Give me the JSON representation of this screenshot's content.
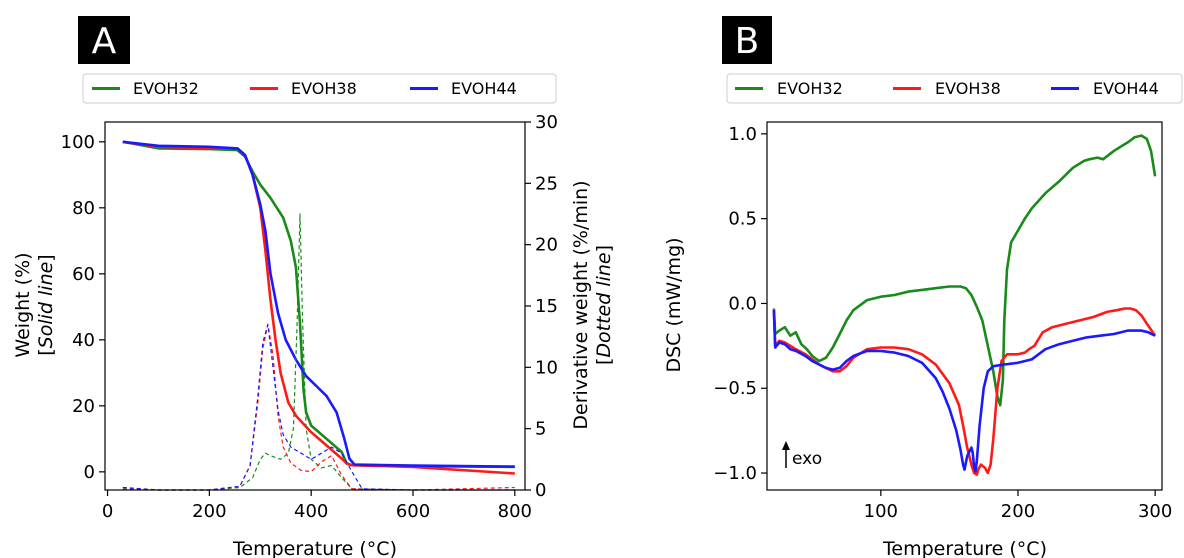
{
  "panels": [
    {
      "label": "A",
      "legend": [
        "EVOH32",
        "EVOH38",
        "EVOH44"
      ]
    },
    {
      "label": "B",
      "legend": [
        "EVOH32",
        "EVOH38",
        "EVOH44"
      ]
    }
  ],
  "colors": {
    "EVOH32": "#1a8a1a",
    "EVOH38": "#ff1a1a",
    "EVOH44": "#1a1aff"
  },
  "chart_data": [
    {
      "type": "line",
      "panel": "A",
      "xlabel": "Temperature (°C)",
      "ylabel": "Weight (%)",
      "ylabel_note": "Solid line",
      "y2label": "Derivative weight (%/min)",
      "y2label_note": "Dotted line",
      "xlim": [
        -5,
        820
      ],
      "ylim": [
        -5.5,
        106
      ],
      "y2lim": [
        0,
        30
      ],
      "xticks": [
        0,
        200,
        400,
        600,
        800
      ],
      "yticks": [
        0,
        20,
        40,
        60,
        80,
        100
      ],
      "y2ticks": [
        0,
        5,
        10,
        15,
        20,
        25,
        30
      ],
      "series": [
        {
          "name": "EVOH32",
          "axis": "left",
          "style": "solid",
          "x": [
            30,
            100,
            200,
            255,
            270,
            285,
            300,
            320,
            345,
            360,
            370,
            378,
            385,
            390,
            400,
            430,
            460,
            470,
            480,
            600,
            800
          ],
          "y": [
            100,
            98,
            97.8,
            97.5,
            95.5,
            91,
            87,
            83,
            77,
            70,
            62,
            45,
            25,
            18,
            14,
            10,
            6,
            2.5,
            2,
            1.7,
            1.5
          ]
        },
        {
          "name": "EVOH38",
          "axis": "left",
          "style": "solid",
          "x": [
            30,
            100,
            200,
            255,
            270,
            285,
            300,
            310,
            320,
            330,
            340,
            355,
            370,
            400,
            430,
            460,
            470,
            480,
            600,
            800
          ],
          "y": [
            100,
            98.5,
            98,
            98,
            96,
            90,
            80,
            67,
            52,
            40,
            30,
            21,
            17,
            12,
            8,
            4,
            2.5,
            2,
            1.5,
            -0.5
          ]
        },
        {
          "name": "EVOH44",
          "axis": "left",
          "style": "solid",
          "x": [
            30,
            100,
            200,
            255,
            270,
            285,
            300,
            310,
            320,
            335,
            350,
            370,
            390,
            410,
            430,
            450,
            465,
            475,
            485,
            600,
            800
          ],
          "y": [
            100,
            98.8,
            98.5,
            98,
            96,
            90,
            81,
            73,
            60,
            48,
            40,
            34,
            29,
            26,
            23,
            18,
            10,
            4,
            2.2,
            1.9,
            1.6
          ]
        },
        {
          "name": "EVOH32",
          "axis": "right",
          "style": "dashed",
          "x": [
            30,
            100,
            200,
            260,
            285,
            300,
            310,
            320,
            340,
            355,
            365,
            372,
            378,
            383,
            390,
            400,
            420,
            440,
            460,
            480,
            600,
            800
          ],
          "y": [
            0.1,
            0,
            0,
            0.2,
            1,
            2.5,
            3,
            2.8,
            2.5,
            3,
            5,
            13,
            22.5,
            14,
            5,
            2.5,
            1.8,
            2,
            1,
            0.1,
            0,
            0
          ]
        },
        {
          "name": "EVOH38",
          "axis": "right",
          "style": "dashed",
          "x": [
            30,
            100,
            200,
            260,
            280,
            295,
            305,
            315,
            325,
            335,
            345,
            360,
            380,
            400,
            420,
            440,
            460,
            480,
            600,
            800
          ],
          "y": [
            0.2,
            0,
            0,
            0.3,
            2,
            7,
            11.5,
            13.5,
            11,
            6,
            3.5,
            2.2,
            1.6,
            1.5,
            2.3,
            2.8,
            1.2,
            0.1,
            0,
            0.2
          ]
        },
        {
          "name": "EVOH44",
          "axis": "right",
          "style": "dashed",
          "x": [
            30,
            100,
            200,
            260,
            280,
            295,
            305,
            315,
            325,
            335,
            345,
            360,
            380,
            400,
            420,
            440,
            460,
            480,
            500,
            600,
            800
          ],
          "y": [
            0.2,
            0,
            0,
            0.3,
            2,
            7.5,
            12,
            13.5,
            10,
            6.5,
            4.5,
            3.5,
            3,
            2.5,
            3,
            3.5,
            3,
            1.5,
            0.1,
            0,
            0
          ]
        }
      ]
    },
    {
      "type": "line",
      "panel": "B",
      "xlabel": "Temperature (°C)",
      "ylabel": "DSC (mW/mg)",
      "annotation": "exo",
      "xlim": [
        17,
        305
      ],
      "ylim": [
        -1.1,
        1.07
      ],
      "xticks": [
        100,
        200,
        300
      ],
      "yticks": [
        -1.0,
        -0.5,
        0.0,
        0.5,
        1.0
      ],
      "series": [
        {
          "name": "EVOH32",
          "x": [
            22,
            23,
            26,
            30,
            34,
            38,
            42,
            46,
            50,
            55,
            60,
            65,
            70,
            75,
            80,
            90,
            100,
            110,
            120,
            130,
            140,
            150,
            158,
            162,
            166,
            170,
            174,
            178,
            182,
            185,
            187,
            189,
            190,
            192,
            195,
            200,
            205,
            210,
            220,
            230,
            240,
            248,
            252,
            258,
            262,
            270,
            280,
            285,
            290,
            294,
            297,
            300
          ],
          "y": [
            -0.03,
            -0.18,
            -0.16,
            -0.14,
            -0.19,
            -0.17,
            -0.24,
            -0.27,
            -0.31,
            -0.34,
            -0.32,
            -0.26,
            -0.18,
            -0.1,
            -0.04,
            0.02,
            0.04,
            0.05,
            0.07,
            0.08,
            0.09,
            0.1,
            0.1,
            0.09,
            0.05,
            -0.02,
            -0.1,
            -0.25,
            -0.4,
            -0.55,
            -0.6,
            -0.45,
            -0.1,
            0.2,
            0.36,
            0.43,
            0.5,
            0.56,
            0.65,
            0.72,
            0.8,
            0.84,
            0.85,
            0.86,
            0.85,
            0.9,
            0.95,
            0.98,
            0.99,
            0.97,
            0.9,
            0.75
          ]
        },
        {
          "name": "EVOH38",
          "x": [
            22,
            23,
            26,
            30,
            34,
            38,
            45,
            50,
            55,
            60,
            65,
            70,
            75,
            80,
            90,
            100,
            110,
            120,
            130,
            140,
            150,
            157,
            160,
            163,
            166,
            168,
            170,
            171,
            173,
            176,
            178,
            180,
            182,
            185,
            188,
            192,
            200,
            205,
            208,
            212,
            218,
            225,
            235,
            245,
            255,
            265,
            272,
            278,
            282,
            286,
            290,
            294,
            300
          ],
          "y": [
            -0.04,
            -0.25,
            -0.22,
            -0.23,
            -0.25,
            -0.27,
            -0.3,
            -0.33,
            -0.36,
            -0.38,
            -0.4,
            -0.4,
            -0.37,
            -0.32,
            -0.27,
            -0.26,
            -0.26,
            -0.27,
            -0.3,
            -0.36,
            -0.47,
            -0.6,
            -0.72,
            -0.85,
            -0.95,
            -1.0,
            -1.01,
            -0.98,
            -0.95,
            -0.97,
            -1.0,
            -0.95,
            -0.8,
            -0.5,
            -0.34,
            -0.3,
            -0.3,
            -0.29,
            -0.27,
            -0.25,
            -0.17,
            -0.14,
            -0.12,
            -0.1,
            -0.08,
            -0.05,
            -0.04,
            -0.03,
            -0.03,
            -0.04,
            -0.07,
            -0.12,
            -0.19
          ]
        },
        {
          "name": "EVOH44",
          "x": [
            22,
            23,
            26,
            30,
            34,
            38,
            45,
            50,
            55,
            60,
            65,
            70,
            75,
            80,
            90,
            100,
            110,
            120,
            130,
            140,
            145,
            150,
            155,
            158,
            160,
            161,
            163,
            166,
            167,
            168,
            169,
            170,
            172,
            175,
            178,
            182,
            190,
            200,
            210,
            220,
            230,
            240,
            250,
            260,
            270,
            280,
            290,
            295,
            300
          ],
          "y": [
            -0.04,
            -0.26,
            -0.23,
            -0.24,
            -0.27,
            -0.28,
            -0.31,
            -0.34,
            -0.36,
            -0.38,
            -0.39,
            -0.38,
            -0.34,
            -0.31,
            -0.28,
            -0.28,
            -0.29,
            -0.31,
            -0.35,
            -0.44,
            -0.52,
            -0.62,
            -0.75,
            -0.86,
            -0.95,
            -0.98,
            -0.9,
            -0.85,
            -0.88,
            -0.96,
            -0.99,
            -0.93,
            -0.72,
            -0.5,
            -0.4,
            -0.37,
            -0.36,
            -0.35,
            -0.33,
            -0.27,
            -0.24,
            -0.22,
            -0.2,
            -0.19,
            -0.18,
            -0.16,
            -0.16,
            -0.17,
            -0.19
          ]
        }
      ]
    }
  ]
}
